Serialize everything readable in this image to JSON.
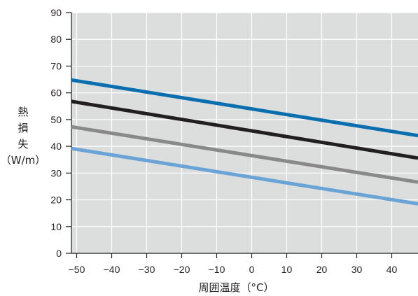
{
  "chart_data": {
    "type": "line",
    "title": "",
    "xlabel": "周囲温度（°C）",
    "ylabel_chars": [
      "熱",
      "損",
      "失"
    ],
    "ylabel_unit": "（W/m）",
    "x_ticks": [
      -50,
      -40,
      -30,
      -20,
      -10,
      0,
      10,
      20,
      30,
      40
    ],
    "x_tick_labels": [
      "−50",
      "−40",
      "−30",
      "−20",
      "−10",
      "0",
      "10",
      "20",
      "30",
      "40"
    ],
    "y_ticks": [
      0,
      10,
      20,
      30,
      40,
      50,
      60,
      70,
      80,
      90
    ],
    "y_tick_labels": [
      "0",
      "10",
      "20",
      "30",
      "40",
      "50",
      "60",
      "70",
      "80",
      "90"
    ],
    "xlim": [
      -51.5,
      47.5
    ],
    "ylim": [
      0,
      90
    ],
    "grid": true,
    "plot_background": "#dcdddd",
    "grid_color": "#ffffff",
    "series": [
      {
        "color": "#0a6eaf",
        "x": [
          -51.5,
          47.5
        ],
        "y": [
          64.8,
          44.0
        ]
      },
      {
        "color": "#231f20",
        "x": [
          -51.5,
          47.5
        ],
        "y": [
          56.8,
          35.6
        ]
      },
      {
        "color": "#898989",
        "x": [
          -51.5,
          47.5
        ],
        "y": [
          47.3,
          26.6
        ]
      },
      {
        "color": "#6aa3d5",
        "x": [
          -51.5,
          47.5
        ],
        "y": [
          39.2,
          18.5
        ]
      }
    ]
  }
}
